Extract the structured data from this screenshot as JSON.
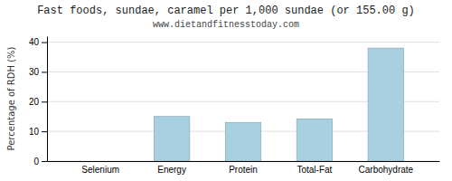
{
  "chart_data": {
    "type": "bar",
    "title": "Fast foods, sundae, caramel per 1,000 sundae (or 155.00 g)",
    "subtitle": "www.dietandfitnesstoday.com",
    "y_label": "Percentage of RDH (%)",
    "categories": [
      "Selenium",
      "Energy",
      "Protein",
      "Total-Fat",
      "Carbohydrate"
    ],
    "values": [
      0,
      15,
      13,
      14.2,
      38
    ],
    "color": "#a8d0e0",
    "ylim": [
      0,
      42
    ],
    "yticks": [
      0,
      10,
      20,
      30,
      40
    ],
    "grid": true
  }
}
